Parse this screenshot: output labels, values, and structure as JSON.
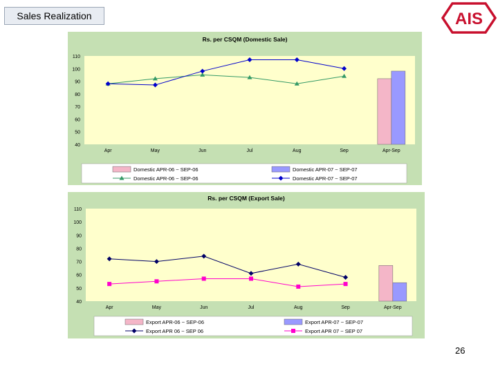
{
  "slide": {
    "title": "Sales Realization",
    "page_number": "26"
  },
  "logo": {
    "text": "AIS",
    "color": "#c8102e"
  },
  "colors": {
    "panel_bg": "#c5e0b3",
    "plot_bg": "#ffffcc",
    "bar_prev": "#f4b6c8",
    "bar_curr": "#9999ff",
    "line_domestic_prev": "#339966",
    "line_domestic_curr": "#0000cc",
    "line_export_prev": "#000066",
    "line_export_curr": "#ff00cc"
  },
  "chart_data": [
    {
      "type": "line",
      "title": "Rs. per CSQM (Domestic Sale)",
      "categories": [
        "Apr",
        "May",
        "Jun",
        "Jul",
        "Aug",
        "Sep",
        "Apr-Sep"
      ],
      "ylim": [
        40,
        110
      ],
      "yticks": [
        40,
        50,
        60,
        70,
        80,
        90,
        100,
        110
      ],
      "grid": false,
      "legend_position": "bottom",
      "series": [
        {
          "name": "Domestic APR-06 ~ SEP-06",
          "kind": "bar",
          "values": [
            null,
            null,
            null,
            null,
            null,
            null,
            92
          ],
          "color": "#f4b6c8"
        },
        {
          "name": "Domestic APR-07 ~ SEP-07",
          "kind": "bar",
          "values": [
            null,
            null,
            null,
            null,
            null,
            null,
            98
          ],
          "color": "#9999ff"
        },
        {
          "name": "Domestic APR-06 ~ SEP-06",
          "kind": "line",
          "marker": "triangle",
          "values": [
            88,
            92,
            95,
            93,
            88,
            94,
            null
          ],
          "color": "#339966"
        },
        {
          "name": "Domestic APR-07 ~ SEP-07",
          "kind": "line",
          "marker": "diamond",
          "values": [
            88,
            87,
            98,
            107,
            107,
            100,
            null
          ],
          "color": "#0000cc"
        }
      ]
    },
    {
      "type": "line",
      "title": "Rs. per CSQM (Export Sale)",
      "categories": [
        "Apr",
        "May",
        "Jun",
        "Jul",
        "Aug",
        "Sep",
        "Apr-Sep"
      ],
      "ylim": [
        40,
        110
      ],
      "yticks": [
        40,
        50,
        60,
        70,
        80,
        90,
        100,
        110
      ],
      "grid": false,
      "legend_position": "bottom",
      "series": [
        {
          "name": "Export APR-06 ~ SEP-06",
          "kind": "bar",
          "values": [
            null,
            null,
            null,
            null,
            null,
            null,
            67
          ],
          "color": "#f4b6c8"
        },
        {
          "name": "Export APR-07 ~ SEP-07",
          "kind": "bar",
          "values": [
            null,
            null,
            null,
            null,
            null,
            null,
            54
          ],
          "color": "#9999ff"
        },
        {
          "name": "Export APR 06 ~ SEP 06",
          "kind": "line",
          "marker": "diamond",
          "values": [
            72,
            70,
            74,
            61,
            68,
            58,
            null
          ],
          "color": "#000066"
        },
        {
          "name": "Export APR 07 ~ SEP 07",
          "kind": "line",
          "marker": "square",
          "values": [
            53,
            55,
            57,
            57,
            51,
            53,
            null
          ],
          "color": "#ff00cc"
        }
      ]
    }
  ]
}
